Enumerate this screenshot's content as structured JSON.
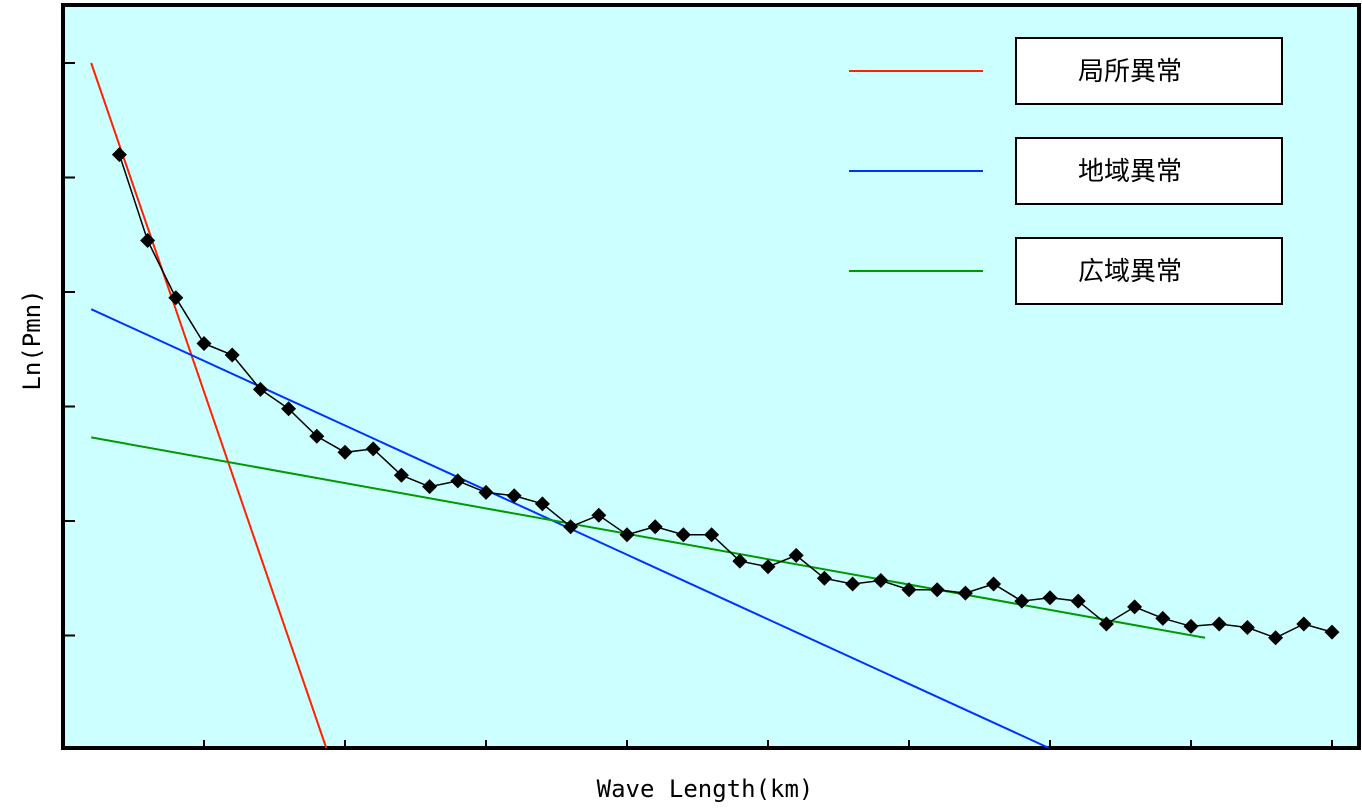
{
  "chart_data": {
    "type": "line",
    "xlabel": "Wave Length(km)",
    "ylabel": "Ln(Pmn)",
    "xlim": [
      0,
      9
    ],
    "ylim": [
      0,
      6
    ],
    "grid": false,
    "legend_placement": "top-right",
    "background": "#ccffff",
    "series": [
      {
        "color": "#000000",
        "marker": "diamond",
        "x": [
          0.4,
          0.6,
          0.8,
          1.0,
          1.2,
          1.4,
          1.6,
          1.8,
          2.0,
          2.2,
          2.4,
          2.6,
          2.8,
          3.0,
          3.2,
          3.4,
          3.6,
          3.8,
          4.0,
          4.2,
          4.4,
          4.6,
          4.8,
          5.0,
          5.2,
          5.4,
          5.6,
          5.8,
          6.0,
          6.2,
          6.4,
          6.6,
          6.8,
          7.0,
          7.2,
          7.4,
          7.6,
          7.8,
          8.0,
          8.2,
          8.4,
          8.6,
          8.8,
          9.0
        ],
        "y": [
          5.2,
          4.45,
          3.95,
          3.55,
          3.45,
          3.15,
          2.98,
          2.74,
          2.6,
          2.63,
          2.4,
          2.3,
          2.35,
          2.25,
          2.22,
          2.15,
          1.95,
          2.05,
          1.88,
          1.95,
          1.88,
          1.88,
          1.65,
          1.6,
          1.7,
          1.5,
          1.45,
          1.48,
          1.4,
          1.4,
          1.37,
          1.45,
          1.3,
          1.33,
          1.3,
          1.1,
          1.25,
          1.15,
          1.08,
          1.1,
          1.07,
          0.98,
          1.1,
          1.03
        ]
      },
      {
        "name": "局所異常",
        "color": "#ff2200",
        "x": [
          0.2,
          1.9
        ],
        "y": [
          6.0,
          -0.1
        ]
      },
      {
        "name": "地域異常",
        "color": "#0033ff",
        "x": [
          0.2,
          7.2
        ],
        "y": [
          3.85,
          -0.1
        ]
      },
      {
        "name": "広域異常",
        "color": "#009900",
        "x": [
          0.2,
          8.1
        ],
        "y": [
          2.73,
          0.98
        ]
      }
    ]
  }
}
